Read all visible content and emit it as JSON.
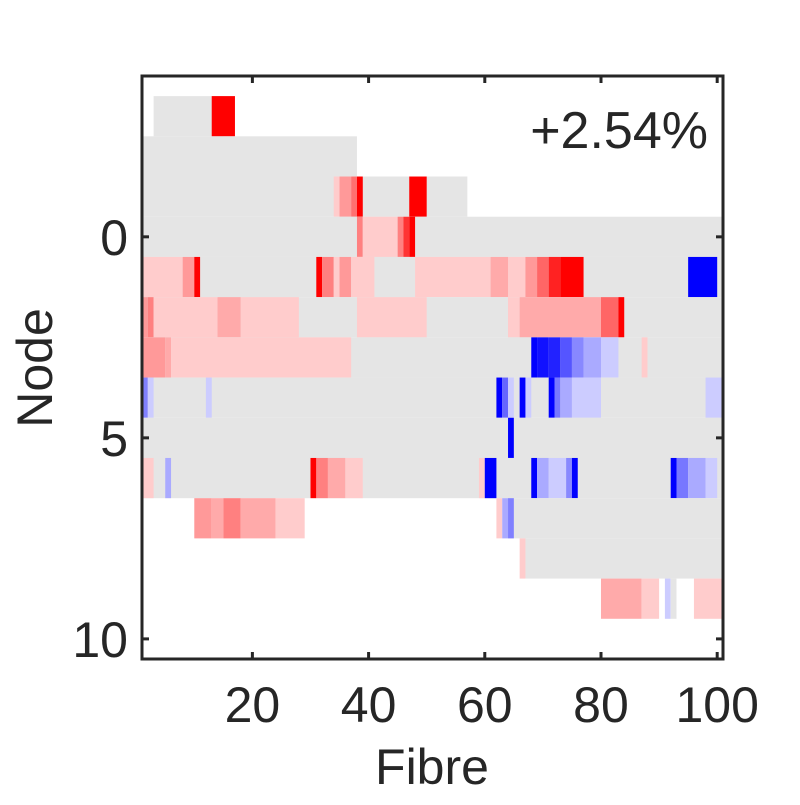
{
  "chart_data": {
    "type": "heatmap",
    "xlabel": "Fibre",
    "ylabel": "Node",
    "annotation": "+2.54%",
    "xlim": [
      1,
      101
    ],
    "ylim": [
      -4,
      10.5
    ],
    "y_reversed": true,
    "xticks": [
      20,
      40,
      60,
      80,
      100
    ],
    "yticks": [
      0,
      5,
      10
    ],
    "grid": false,
    "colors": {
      "background": "#e5e5e5",
      "axis": "#262626",
      "red_strong": "#ff0000",
      "red_medium": "#ff8080",
      "red_light": "#ffcccc",
      "blue_strong": "#0000ff",
      "blue_medium": "#7f7fff",
      "blue_light": "#ccccff"
    },
    "rows": [
      {
        "node": -3,
        "extent": [
          3,
          15
        ],
        "cells": [
          [
            13,
            17,
            "#ff0000"
          ]
        ]
      },
      {
        "node": -2,
        "extent": [
          1,
          38
        ],
        "cells": []
      },
      {
        "node": -1,
        "extent": [
          1,
          57
        ],
        "cells": [
          [
            34,
            35,
            "#ffcccc"
          ],
          [
            35,
            37,
            "#ff9999"
          ],
          [
            37,
            38,
            "#ff7070"
          ],
          [
            38,
            39,
            "#ff0000"
          ],
          [
            47,
            50,
            "#ff0000"
          ]
        ]
      },
      {
        "node": 0,
        "extent": [
          1,
          101
        ],
        "cells": [
          [
            38,
            39,
            "#ff8080"
          ],
          [
            39,
            45,
            "#ffcccc"
          ],
          [
            45,
            46,
            "#ff8080"
          ],
          [
            46,
            47,
            "#ff3333"
          ],
          [
            47,
            48,
            "#ff0000"
          ]
        ]
      },
      {
        "node": 1,
        "extent": [
          1,
          101
        ],
        "cells": [
          [
            1,
            8,
            "#ffcccc"
          ],
          [
            8,
            10,
            "#ff9999"
          ],
          [
            10,
            11,
            "#ff0000"
          ],
          [
            31,
            32,
            "#ff0000"
          ],
          [
            32,
            34,
            "#ff8080"
          ],
          [
            34,
            35,
            "#ffcccc"
          ],
          [
            35,
            37,
            "#ff9999"
          ],
          [
            37,
            41,
            "#ffcccc"
          ],
          [
            48,
            61,
            "#ffcccc"
          ],
          [
            61,
            64,
            "#ffaaaa"
          ],
          [
            64,
            67,
            "#ffcccc"
          ],
          [
            67,
            69,
            "#ff9999"
          ],
          [
            69,
            71,
            "#ff6666"
          ],
          [
            71,
            73,
            "#ff2222"
          ],
          [
            73,
            77,
            "#ff0000"
          ],
          [
            95,
            100,
            "#0000ff"
          ]
        ]
      },
      {
        "node": 2,
        "extent": [
          1,
          101
        ],
        "cells": [
          [
            1,
            2,
            "#ff9999"
          ],
          [
            2,
            3,
            "#ff8080"
          ],
          [
            3,
            14,
            "#ffcccc"
          ],
          [
            14,
            18,
            "#ffaaaa"
          ],
          [
            18,
            28,
            "#ffcccc"
          ],
          [
            38,
            50,
            "#ffcccc"
          ],
          [
            64,
            66,
            "#ffcccc"
          ],
          [
            66,
            80,
            "#ffaaaa"
          ],
          [
            80,
            83,
            "#ff6666"
          ],
          [
            83,
            84,
            "#ff0000"
          ]
        ]
      },
      {
        "node": 3,
        "extent": [
          1,
          101
        ],
        "cells": [
          [
            1,
            5,
            "#ff9999"
          ],
          [
            5,
            6,
            "#ffaaaa"
          ],
          [
            6,
            37,
            "#ffcccc"
          ],
          [
            68,
            69,
            "#0000ff"
          ],
          [
            69,
            71,
            "#1111ff"
          ],
          [
            71,
            73,
            "#2222ff"
          ],
          [
            73,
            75,
            "#5555ff"
          ],
          [
            75,
            77,
            "#8888ff"
          ],
          [
            77,
            80,
            "#aaaaff"
          ],
          [
            80,
            83,
            "#ccccff"
          ],
          [
            87,
            88,
            "#ffcccc"
          ]
        ]
      },
      {
        "node": 4,
        "extent": [
          1,
          101
        ],
        "cells": [
          [
            1,
            2,
            "#8080ff"
          ],
          [
            2,
            3,
            "#ccccff"
          ],
          [
            12,
            13,
            "#ccccff"
          ],
          [
            62,
            63,
            "#0000ff"
          ],
          [
            63,
            64,
            "#6666ff"
          ],
          [
            64,
            65,
            "#ccccff"
          ],
          [
            66,
            67,
            "#0000ff"
          ],
          [
            67,
            68,
            "#ccccff"
          ],
          [
            71,
            72,
            "#0000ff"
          ],
          [
            72,
            73,
            "#7777ff"
          ],
          [
            73,
            75,
            "#aaaaff"
          ],
          [
            75,
            80,
            "#ccccff"
          ],
          [
            98,
            101,
            "#ccccff"
          ]
        ]
      },
      {
        "node": 5,
        "extent": [
          1,
          101
        ],
        "cells": [
          [
            64,
            65,
            "#0000ff"
          ]
        ]
      },
      {
        "node": 6,
        "extent": [
          1,
          101
        ],
        "cells": [
          [
            1,
            3,
            "#ffcccc"
          ],
          [
            5,
            6,
            "#aaaaff"
          ],
          [
            30,
            31,
            "#ff0000"
          ],
          [
            31,
            33,
            "#ff8080"
          ],
          [
            33,
            36,
            "#ffaaaa"
          ],
          [
            36,
            39,
            "#ffcccc"
          ],
          [
            59,
            60,
            "#ffcccc"
          ],
          [
            60,
            62,
            "#0000ff"
          ],
          [
            68,
            69,
            "#0000ff"
          ],
          [
            69,
            71,
            "#aaaaff"
          ],
          [
            71,
            74,
            "#ccccff"
          ],
          [
            74,
            75,
            "#8888ff"
          ],
          [
            75,
            76,
            "#0000ff"
          ],
          [
            92,
            93,
            "#0000ff"
          ],
          [
            93,
            95,
            "#7777ff"
          ],
          [
            95,
            98,
            "#aaaaff"
          ],
          [
            98,
            100,
            "#ccccff"
          ]
        ]
      },
      {
        "node": 7,
        "extent": [
          64,
          101
        ],
        "cells": [
          [
            10,
            13,
            "#ff9999"
          ],
          [
            13,
            15,
            "#ffaaaa"
          ],
          [
            15,
            18,
            "#ff8080"
          ],
          [
            18,
            24,
            "#ffaaaa"
          ],
          [
            24,
            29,
            "#ffcccc"
          ],
          [
            62,
            63,
            "#ffcccc"
          ],
          [
            63,
            64,
            "#aaaaff"
          ],
          [
            64,
            65,
            "#8080ff"
          ]
        ]
      },
      {
        "node": 8,
        "extent": [
          67,
          101
        ],
        "cells": [
          [
            66,
            67,
            "#ffcccc"
          ]
        ]
      },
      {
        "node": 9,
        "extent": [],
        "cells": [
          [
            80,
            87,
            "#ffaaaa"
          ],
          [
            87,
            90,
            "#ffcccc"
          ],
          [
            91,
            92,
            "#ccccff"
          ],
          [
            92,
            93,
            "#e5e5e5"
          ],
          [
            96,
            101,
            "#ffcccc"
          ]
        ]
      }
    ]
  }
}
